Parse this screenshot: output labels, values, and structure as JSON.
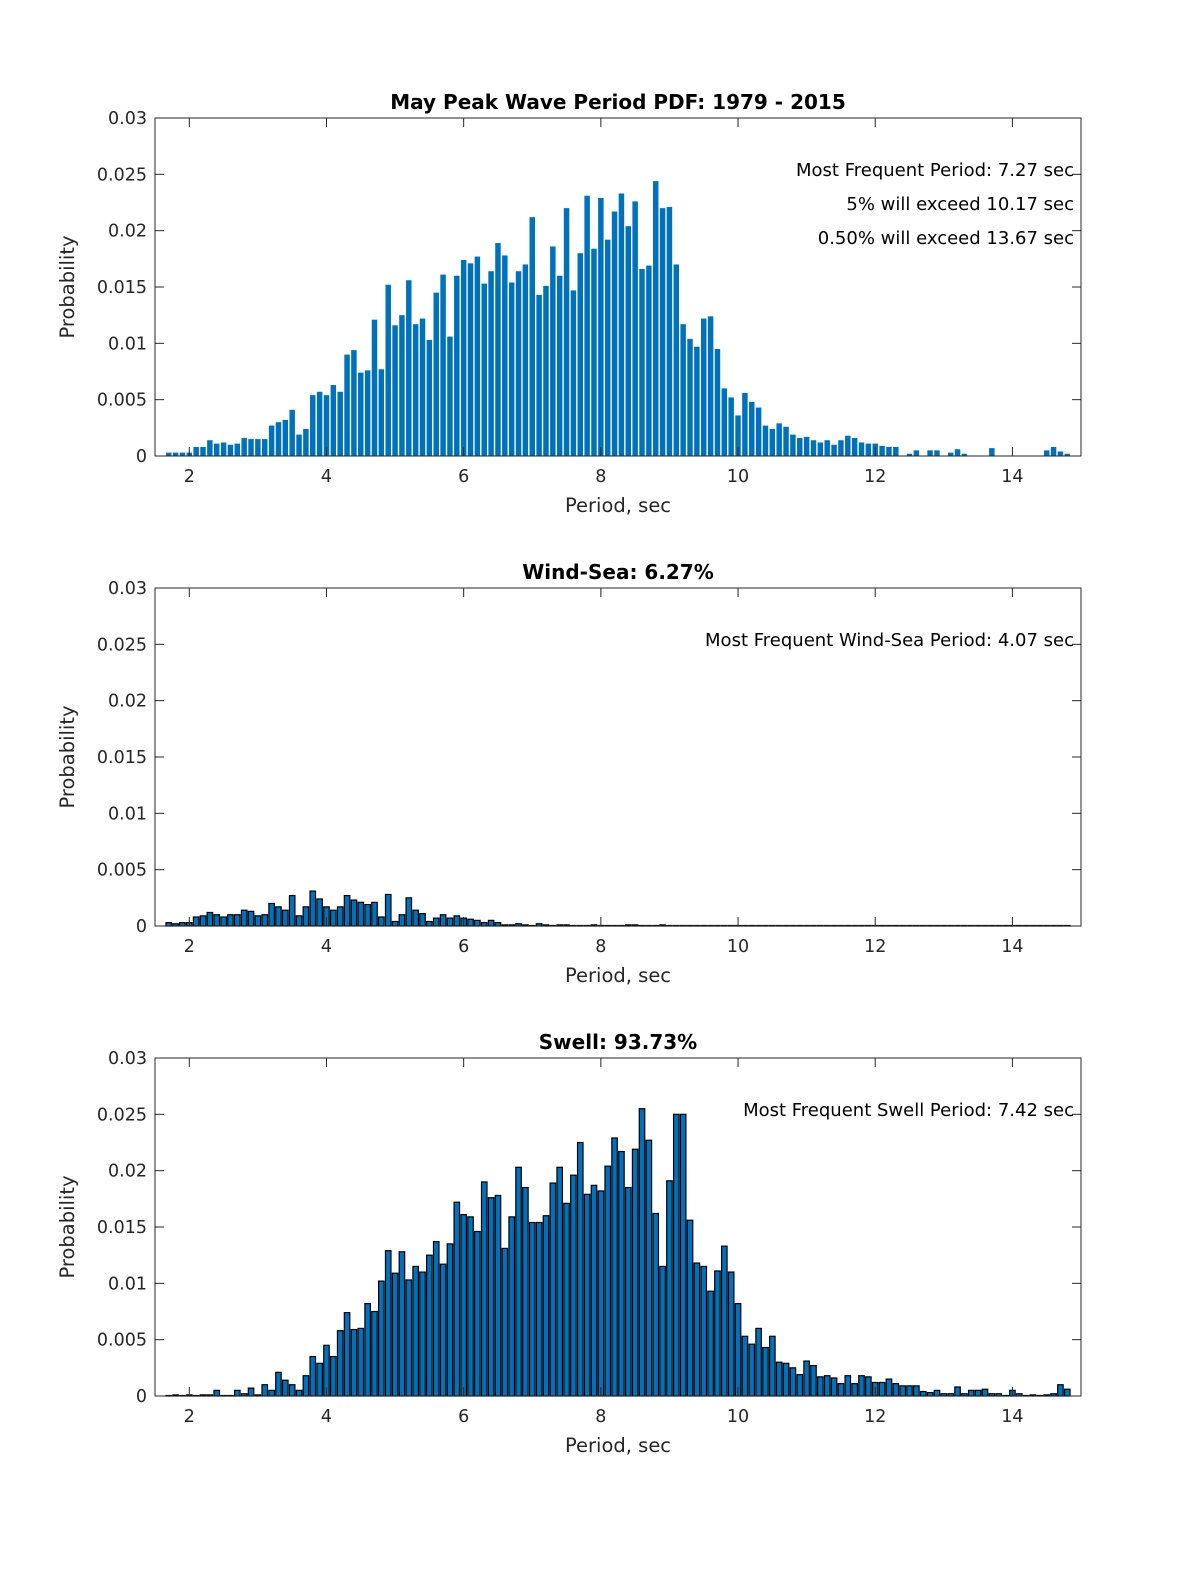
{
  "chart_data": [
    {
      "type": "bar",
      "title": "May Peak Wave Period PDF: 1979 - 2015",
      "xlabel": "Period, sec",
      "ylabel": "Probability",
      "xlim": [
        1.5,
        15
      ],
      "ylim": [
        0,
        0.03
      ],
      "xticks": [
        2,
        4,
        6,
        8,
        10,
        12,
        14
      ],
      "xtick_labels": [
        "2",
        "4",
        "6",
        "8",
        "10",
        "12",
        "14"
      ],
      "yticks": [
        0,
        0.005,
        0.01,
        0.015,
        0.02,
        0.025,
        0.03
      ],
      "ytick_labels": [
        "0",
        "0.005",
        "0.01",
        "0.015",
        "0.02",
        "0.025",
        "0.03"
      ],
      "grid": false,
      "bar_edge": false,
      "bar_color": "#0072BD",
      "annotations": [
        "Most Frequent Period: 7.27 sec",
        "5% will exceed 10.17 sec",
        "0.50% will exceed 13.67 sec"
      ],
      "x_start": 1.7,
      "x_step": 0.1,
      "values": [
        0.0003,
        0.0003,
        0.0003,
        0.0003,
        0.0008,
        0.0008,
        0.0014,
        0.0011,
        0.0012,
        0.001,
        0.0011,
        0.0016,
        0.0015,
        0.0015,
        0.0015,
        0.0027,
        0.003,
        0.0032,
        0.0041,
        0.0019,
        0.0024,
        0.0054,
        0.0057,
        0.0054,
        0.0063,
        0.0057,
        0.009,
        0.0094,
        0.0074,
        0.0076,
        0.0121,
        0.0077,
        0.0152,
        0.0116,
        0.0125,
        0.0156,
        0.0117,
        0.0122,
        0.0103,
        0.0145,
        0.0161,
        0.0106,
        0.016,
        0.0174,
        0.0171,
        0.0177,
        0.0153,
        0.0164,
        0.0189,
        0.0178,
        0.0154,
        0.0164,
        0.017,
        0.0212,
        0.0143,
        0.0151,
        0.0186,
        0.016,
        0.022,
        0.0147,
        0.018,
        0.0231,
        0.0184,
        0.0229,
        0.0192,
        0.0217,
        0.0233,
        0.0204,
        0.0226,
        0.0166,
        0.0169,
        0.0244,
        0.022,
        0.0221,
        0.017,
        0.0117,
        0.0104,
        0.0097,
        0.0122,
        0.0124,
        0.0095,
        0.006,
        0.0052,
        0.0036,
        0.0056,
        0.0048,
        0.0043,
        0.0027,
        0.0024,
        0.0029,
        0.0026,
        0.0019,
        0.0016,
        0.0017,
        0.0014,
        0.0012,
        0.0014,
        0.001,
        0.0014,
        0.0018,
        0.0016,
        0.0012,
        0.0011,
        0.0011,
        0.0009,
        0.0008,
        0.0008,
        0,
        0.0002,
        0.0005,
        0,
        0.0005,
        0.0005,
        0,
        0.0003,
        0.0006,
        0.0002,
        0,
        0,
        0,
        0.0007,
        0,
        0,
        0,
        0,
        0,
        0,
        0,
        0.0005,
        0.0008,
        0.0004,
        0.0002
      ]
    },
    {
      "type": "bar",
      "title": "Wind-Sea: 6.27%",
      "xlabel": "Period, sec",
      "ylabel": "Probability",
      "xlim": [
        1.5,
        15
      ],
      "ylim": [
        0,
        0.03
      ],
      "xticks": [
        2,
        4,
        6,
        8,
        10,
        12,
        14
      ],
      "xtick_labels": [
        "2",
        "4",
        "6",
        "8",
        "10",
        "12",
        "14"
      ],
      "yticks": [
        0,
        0.005,
        0.01,
        0.015,
        0.02,
        0.025,
        0.03
      ],
      "ytick_labels": [
        "0",
        "0.005",
        "0.01",
        "0.015",
        "0.02",
        "0.025",
        "0.03"
      ],
      "grid": false,
      "bar_edge": true,
      "bar_color": "#0072BD",
      "annotations": [
        "Most Frequent Wind-Sea Period: 4.07 sec"
      ],
      "x_start": 1.7,
      "x_step": 0.1,
      "values": [
        0.0003,
        0.0002,
        0.0003,
        0.0003,
        0.0008,
        0.0009,
        0.0012,
        0.001,
        0.0008,
        0.001,
        0.001,
        0.0014,
        0.0013,
        0.0009,
        0.001,
        0.002,
        0.0017,
        0.0014,
        0.0027,
        0.0009,
        0.0017,
        0.0031,
        0.0024,
        0.0017,
        0.0014,
        0.0017,
        0.0027,
        0.0023,
        0.0021,
        0.0019,
        0.0021,
        0.0008,
        0.0028,
        0.0004,
        0.001,
        0.0025,
        0.0014,
        0.0011,
        0.0004,
        0.0007,
        0.001,
        0.0007,
        0.0009,
        0.0007,
        0.0006,
        0.0005,
        0.0003,
        0.0005,
        0.0003,
        0.0001,
        0.0001,
        0.0002,
        0.0001,
        0,
        0.0002,
        0.0001,
        0,
        0.0001,
        0.0001,
        0,
        0,
        0,
        0.0001,
        0,
        0,
        0,
        0,
        0.0001,
        0.0001,
        0,
        0,
        0,
        0.0001,
        0,
        0,
        0,
        0,
        0,
        0,
        0,
        0,
        0,
        0,
        0,
        0,
        0,
        0,
        0,
        0,
        0,
        0,
        0,
        0,
        0,
        0,
        0,
        0,
        0,
        0,
        0,
        0,
        0,
        0,
        0,
        0,
        0,
        0,
        0,
        0,
        0,
        0,
        0,
        0,
        0,
        0,
        0,
        0,
        0,
        0,
        0,
        0,
        0,
        0,
        0,
        0,
        0,
        0,
        0,
        0,
        0,
        0,
        0
      ]
    },
    {
      "type": "bar",
      "title": "Swell: 93.73%",
      "xlabel": "Period, sec",
      "ylabel": "Probability",
      "xlim": [
        1.5,
        15
      ],
      "ylim": [
        0,
        0.03
      ],
      "xticks": [
        2,
        4,
        6,
        8,
        10,
        12,
        14
      ],
      "xtick_labels": [
        "2",
        "4",
        "6",
        "8",
        "10",
        "12",
        "14"
      ],
      "yticks": [
        0,
        0.005,
        0.01,
        0.015,
        0.02,
        0.025,
        0.03
      ],
      "ytick_labels": [
        "0",
        "0.005",
        "0.01",
        "0.015",
        "0.02",
        "0.025",
        "0.03"
      ],
      "grid": false,
      "bar_edge": true,
      "bar_color": "#0072BD",
      "annotations": [
        "Most Frequent Swell Period: 7.42 sec"
      ],
      "x_start": 1.7,
      "x_step": 0.1,
      "values": [
        0,
        0.0001,
        0,
        0.0001,
        0,
        0.0001,
        0.0001,
        0.0005,
        0,
        0,
        0.0005,
        0.0002,
        0.0007,
        0.0001,
        0.001,
        0.0005,
        0.0021,
        0.0014,
        0.001,
        0.0005,
        0.0018,
        0.0035,
        0.0029,
        0.0045,
        0.0035,
        0.0058,
        0.0074,
        0.0059,
        0.006,
        0.0082,
        0.0075,
        0.0102,
        0.0129,
        0.0109,
        0.0128,
        0.0103,
        0.0115,
        0.011,
        0.0125,
        0.0137,
        0.0117,
        0.0135,
        0.0172,
        0.0161,
        0.0159,
        0.0146,
        0.019,
        0.0176,
        0.0178,
        0.0131,
        0.0159,
        0.0203,
        0.0185,
        0.0154,
        0.0154,
        0.016,
        0.0189,
        0.0203,
        0.0171,
        0.0196,
        0.0225,
        0.0179,
        0.0187,
        0.0182,
        0.0204,
        0.0229,
        0.0217,
        0.0185,
        0.0219,
        0.0255,
        0.0227,
        0.0162,
        0.0115,
        0.0191,
        0.025,
        0.025,
        0.0156,
        0.0118,
        0.0115,
        0.0093,
        0.0111,
        0.0133,
        0.011,
        0.0082,
        0.0053,
        0.0046,
        0.006,
        0.0043,
        0.0053,
        0.003,
        0.0029,
        0.0025,
        0.0019,
        0.0031,
        0.0027,
        0.0017,
        0.0018,
        0.0016,
        0.0011,
        0.0018,
        0.0011,
        0.0018,
        0.0017,
        0.0012,
        0.0012,
        0.0015,
        0.0011,
        0.0009,
        0.0009,
        0.0009,
        0.0004,
        0.0003,
        0.0005,
        0.0002,
        0.0002,
        0.0008,
        0.0002,
        0.0005,
        0.0005,
        0.0006,
        0.0002,
        0.0002,
        0,
        0.0005,
        0.0002,
        0,
        0.0001,
        0,
        0.0001,
        0.0002,
        0.001,
        0.0006
      ]
    }
  ]
}
